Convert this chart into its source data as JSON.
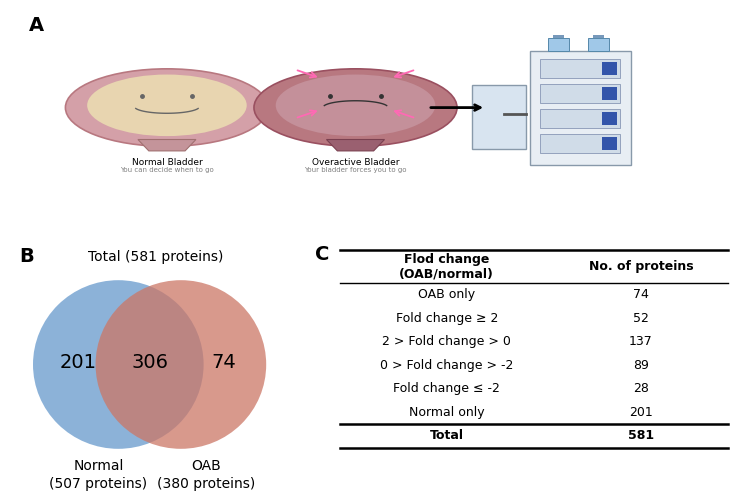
{
  "panel_A_label": "A",
  "panel_B_label": "B",
  "panel_C_label": "C",
  "venn_title": "Total (581 proteins)",
  "venn_left_label": "Normal\n(507 proteins)",
  "venn_right_label": "OAB\n(380 proteins)",
  "venn_left_value": "201",
  "venn_center_value": "306",
  "venn_right_value": "74",
  "venn_left_color": "#6699CC",
  "venn_right_color": "#CC7766",
  "table_header_col1": "Flod change\n(OAB/normal)",
  "table_header_col2": "No. of proteins",
  "table_rows": [
    [
      "OAB only",
      "74"
    ],
    [
      "Fold change ≥ 2",
      "52"
    ],
    [
      "2 > Fold change > 0",
      "137"
    ],
    [
      "0 > Fold change > -2",
      "89"
    ],
    [
      "Fold change ≤ -2",
      "28"
    ],
    [
      "Normal only",
      "201"
    ],
    [
      "Total",
      "581"
    ]
  ],
  "background_color": "#ffffff",
  "label_fontsize": 14,
  "venn_number_fontsize": 13,
  "venn_label_fontsize": 10,
  "venn_title_fontsize": 10,
  "table_header_fontsize": 9,
  "table_data_fontsize": 9
}
